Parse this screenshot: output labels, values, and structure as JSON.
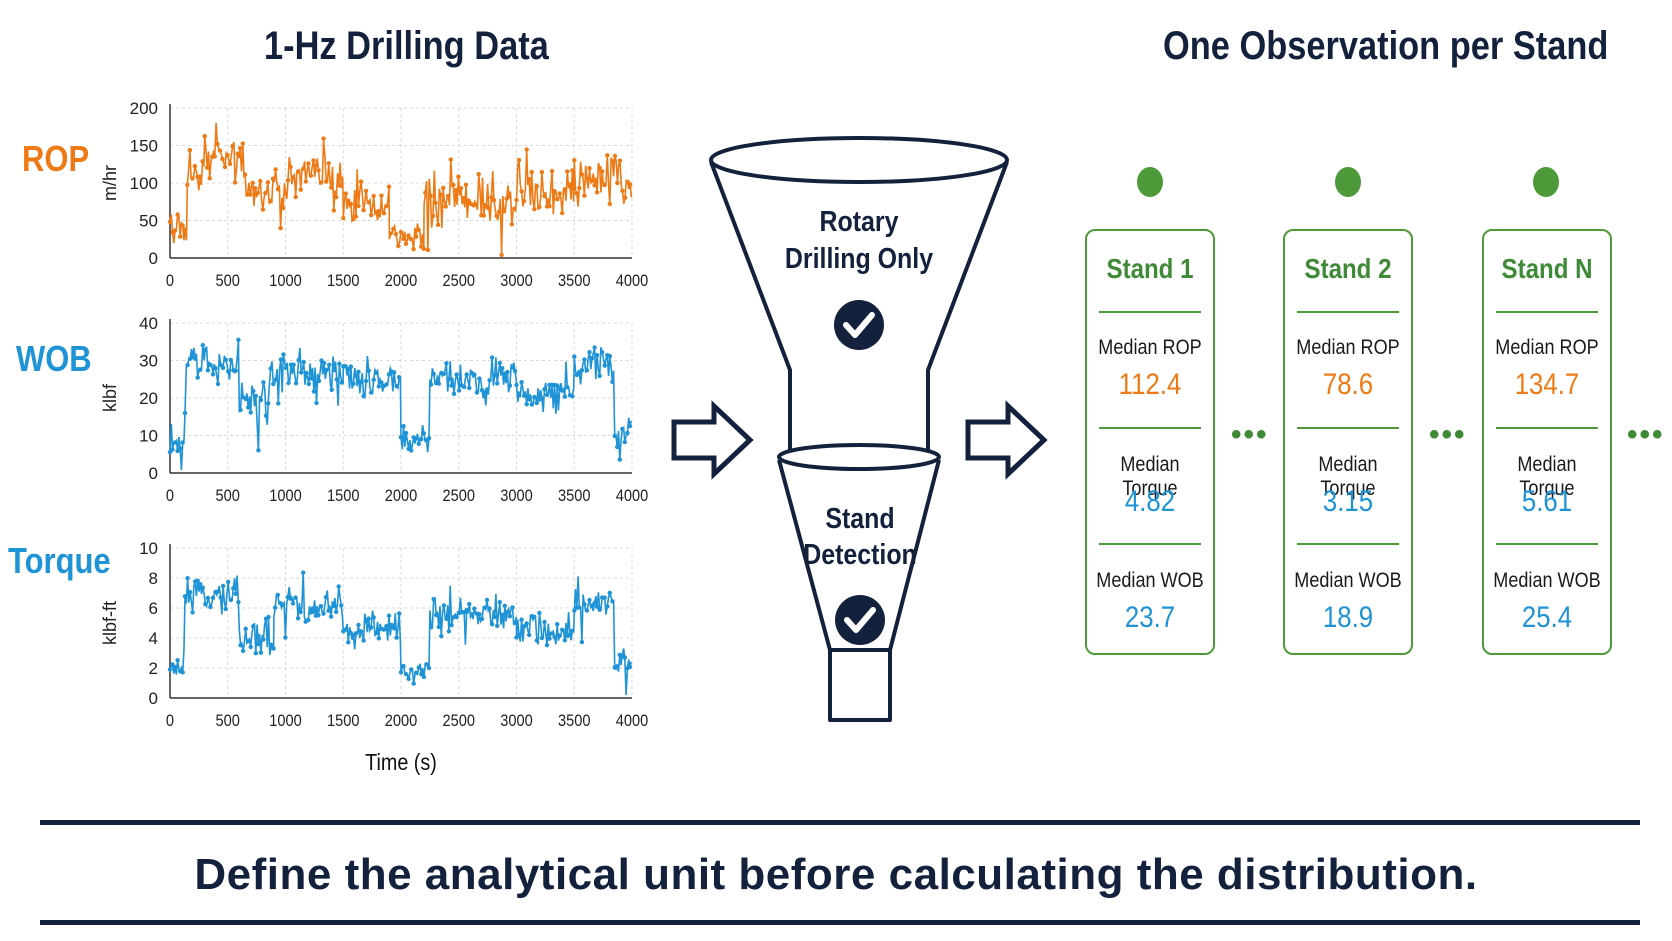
{
  "left_heading": "1-Hz Drilling Data",
  "right_heading": "One Observation per Stand",
  "colors": {
    "rop": "#ee7a16",
    "wob": "#1e93d6",
    "torque": "#1e93d6",
    "navy": "#14213d",
    "green": "#4e9a3a"
  },
  "chart_data": [
    {
      "type": "line",
      "series_label": "ROP",
      "ylabel": "m/hr",
      "xlabel": "",
      "x_ticks": [
        "0",
        "500",
        "1000",
        "1500",
        "2000",
        "2500",
        "3000",
        "3500",
        "4000"
      ],
      "y_ticks": [
        "0",
        "50",
        "100",
        "150",
        "200"
      ],
      "xlim": [
        0,
        4000
      ],
      "ylim": [
        0,
        200
      ],
      "grid": true,
      "segments": [
        {
          "x": [
            0,
            150
          ],
          "mean": 40,
          "noise": 18
        },
        {
          "x": [
            150,
            300
          ],
          "mean": 115,
          "noise": 22
        },
        {
          "x": [
            300,
            650
          ],
          "mean": 135,
          "noise": 22
        },
        {
          "x": [
            650,
            1000
          ],
          "mean": 90,
          "noise": 25
        },
        {
          "x": [
            1000,
            1500
          ],
          "mean": 110,
          "noise": 25
        },
        {
          "x": [
            1500,
            1900
          ],
          "mean": 75,
          "noise": 22
        },
        {
          "x": [
            1900,
            2200
          ],
          "mean": 30,
          "noise": 14
        },
        {
          "x": [
            2200,
            3000
          ],
          "mean": 75,
          "noise": 25
        },
        {
          "x": [
            3000,
            3500
          ],
          "mean": 90,
          "noise": 25
        },
        {
          "x": [
            3500,
            4000
          ],
          "mean": 105,
          "noise": 25
        }
      ]
    },
    {
      "type": "line",
      "series_label": "WOB",
      "ylabel": "klbf",
      "xlabel": "",
      "x_ticks": [
        "0",
        "500",
        "1000",
        "1500",
        "2000",
        "2500",
        "3000",
        "3500",
        "4000"
      ],
      "y_ticks": [
        "0",
        "10",
        "20",
        "30",
        "40"
      ],
      "xlim": [
        0,
        4000
      ],
      "ylim": [
        0,
        40
      ],
      "grid": true,
      "segments": [
        {
          "x": [
            0,
            130
          ],
          "mean": 9,
          "noise": 3
        },
        {
          "x": [
            130,
            600
          ],
          "mean": 29,
          "noise": 4
        },
        {
          "x": [
            600,
            850
          ],
          "mean": 18,
          "noise": 5
        },
        {
          "x": [
            850,
            1500
          ],
          "mean": 27,
          "noise": 4
        },
        {
          "x": [
            1500,
            2000
          ],
          "mean": 25,
          "noise": 4
        },
        {
          "x": [
            2000,
            2250
          ],
          "mean": 9,
          "noise": 3
        },
        {
          "x": [
            2250,
            3000
          ],
          "mean": 25,
          "noise": 4
        },
        {
          "x": [
            3000,
            3500
          ],
          "mean": 21,
          "noise": 4
        },
        {
          "x": [
            3500,
            3850
          ],
          "mean": 29,
          "noise": 4
        },
        {
          "x": [
            3850,
            4000
          ],
          "mean": 10,
          "noise": 4
        }
      ]
    },
    {
      "type": "line",
      "series_label": "Torque",
      "ylabel": "klbf-ft",
      "xlabel": "Time (s)",
      "x_ticks": [
        "0",
        "500",
        "1000",
        "1500",
        "2000",
        "2500",
        "3000",
        "3500",
        "4000"
      ],
      "y_ticks": [
        "0",
        "2",
        "4",
        "6",
        "8",
        "10"
      ],
      "xlim": [
        0,
        4000
      ],
      "ylim": [
        0,
        10
      ],
      "grid": true,
      "segments": [
        {
          "x": [
            0,
            130
          ],
          "mean": 2,
          "noise": 0.6
        },
        {
          "x": [
            130,
            600
          ],
          "mean": 6.8,
          "noise": 0.9
        },
        {
          "x": [
            600,
            900
          ],
          "mean": 4,
          "noise": 1.1
        },
        {
          "x": [
            900,
            1500
          ],
          "mean": 6.2,
          "noise": 0.9
        },
        {
          "x": [
            1500,
            2000
          ],
          "mean": 4.6,
          "noise": 0.9
        },
        {
          "x": [
            2000,
            2250
          ],
          "mean": 1.8,
          "noise": 0.5
        },
        {
          "x": [
            2250,
            3000
          ],
          "mean": 5.5,
          "noise": 0.9
        },
        {
          "x": [
            3000,
            3500
          ],
          "mean": 4.5,
          "noise": 0.9
        },
        {
          "x": [
            3500,
            3850
          ],
          "mean": 6.5,
          "noise": 0.9
        },
        {
          "x": [
            3850,
            4000
          ],
          "mean": 2.3,
          "noise": 0.8
        }
      ]
    }
  ],
  "funnel": {
    "top_line1": "Rotary",
    "top_line2": "Drilling Only",
    "bottom_line1": "Stand",
    "bottom_line2": "Detection"
  },
  "stands": [
    {
      "title": "Stand 1",
      "rop_label": "Median ROP",
      "rop": "112.4",
      "torque_label": "Median Torque",
      "torque": "4.82",
      "wob_label": "Median WOB",
      "wob": "23.7"
    },
    {
      "title": "Stand 2",
      "rop_label": "Median ROP",
      "rop": "78.6",
      "torque_label": "Median Torque",
      "torque": "3.15",
      "wob_label": "Median WOB",
      "wob": "18.9"
    },
    {
      "title": "Stand N",
      "rop_label": "Median ROP",
      "rop": "134.7",
      "torque_label": "Median Torque",
      "torque": "5.61",
      "wob_label": "Median WOB",
      "wob": "25.4"
    }
  ],
  "ellipsis": "•••",
  "takeaway": "Define the analytical unit before calculating the distribution."
}
